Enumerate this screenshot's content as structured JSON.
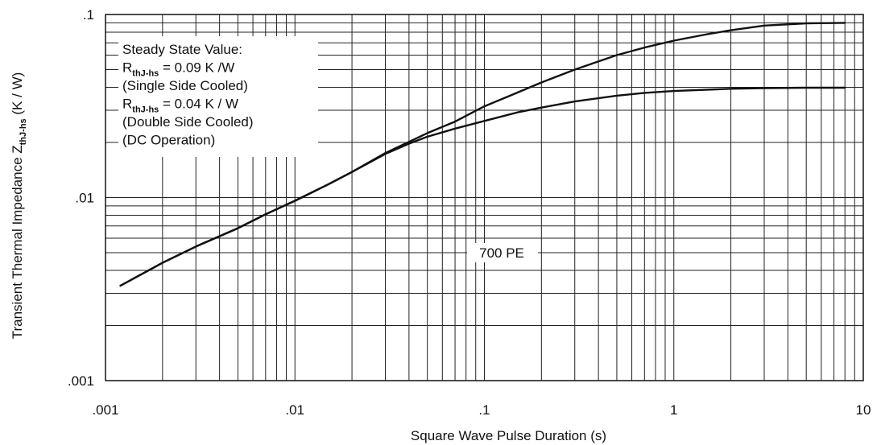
{
  "chart_data": {
    "type": "line",
    "xscale": "log",
    "yscale": "log",
    "xlim": [
      0.001,
      10
    ],
    "ylim": [
      0.001,
      0.1
    ],
    "grid": true,
    "xlabel": "Square Wave Pulse Duration (s)",
    "ylabel": {
      "main": "Transient Thermal Impedance Z",
      "sub": "thJ-hs",
      "tail": " (K / W)"
    },
    "x_tick_labels": [
      ".001",
      ".01",
      ".1",
      "1",
      "10"
    ],
    "y_tick_labels": [
      ".001",
      ".01",
      ".1"
    ],
    "annotation": {
      "line1": "Steady State Value:",
      "line2": {
        "main": "R",
        "sub": "thJ-hs",
        "tail": " = 0.09  K /W"
      },
      "line3": "(Single Side Cooled)",
      "line4": {
        "main": "R",
        "sub": "thJ-hs",
        "tail": " = 0.04 K / W"
      },
      "line5": "(Double Side Cooled)",
      "line6": "(DC Operation)"
    },
    "device_label": "700 PE",
    "series": [
      {
        "x": [
          0.0012,
          0.002,
          0.003,
          0.005,
          0.007,
          0.01,
          0.015,
          0.02,
          0.03,
          0.05,
          0.07,
          0.1,
          0.15,
          0.2,
          0.3,
          0.5,
          0.7,
          1,
          1.5,
          2,
          3,
          5,
          8
        ],
        "values": [
          0.0033,
          0.0044,
          0.0054,
          0.0068,
          0.0081,
          0.0096,
          0.0118,
          0.0138,
          0.0175,
          0.0225,
          0.026,
          0.0315,
          0.0375,
          0.0425,
          0.05,
          0.06,
          0.066,
          0.072,
          0.078,
          0.082,
          0.087,
          0.0895,
          0.09
        ]
      },
      {
        "x": [
          0.0012,
          0.002,
          0.003,
          0.005,
          0.007,
          0.01,
          0.015,
          0.02,
          0.03,
          0.04,
          0.05,
          0.07,
          0.1,
          0.15,
          0.2,
          0.3,
          0.5,
          0.7,
          1,
          2,
          3,
          5,
          8
        ],
        "values": [
          0.0033,
          0.0044,
          0.0054,
          0.0068,
          0.0081,
          0.0096,
          0.0118,
          0.0138,
          0.0173,
          0.0197,
          0.0215,
          0.0238,
          0.0262,
          0.0292,
          0.031,
          0.0335,
          0.036,
          0.0373,
          0.0382,
          0.0393,
          0.0396,
          0.0398,
          0.0398
        ]
      }
    ]
  }
}
